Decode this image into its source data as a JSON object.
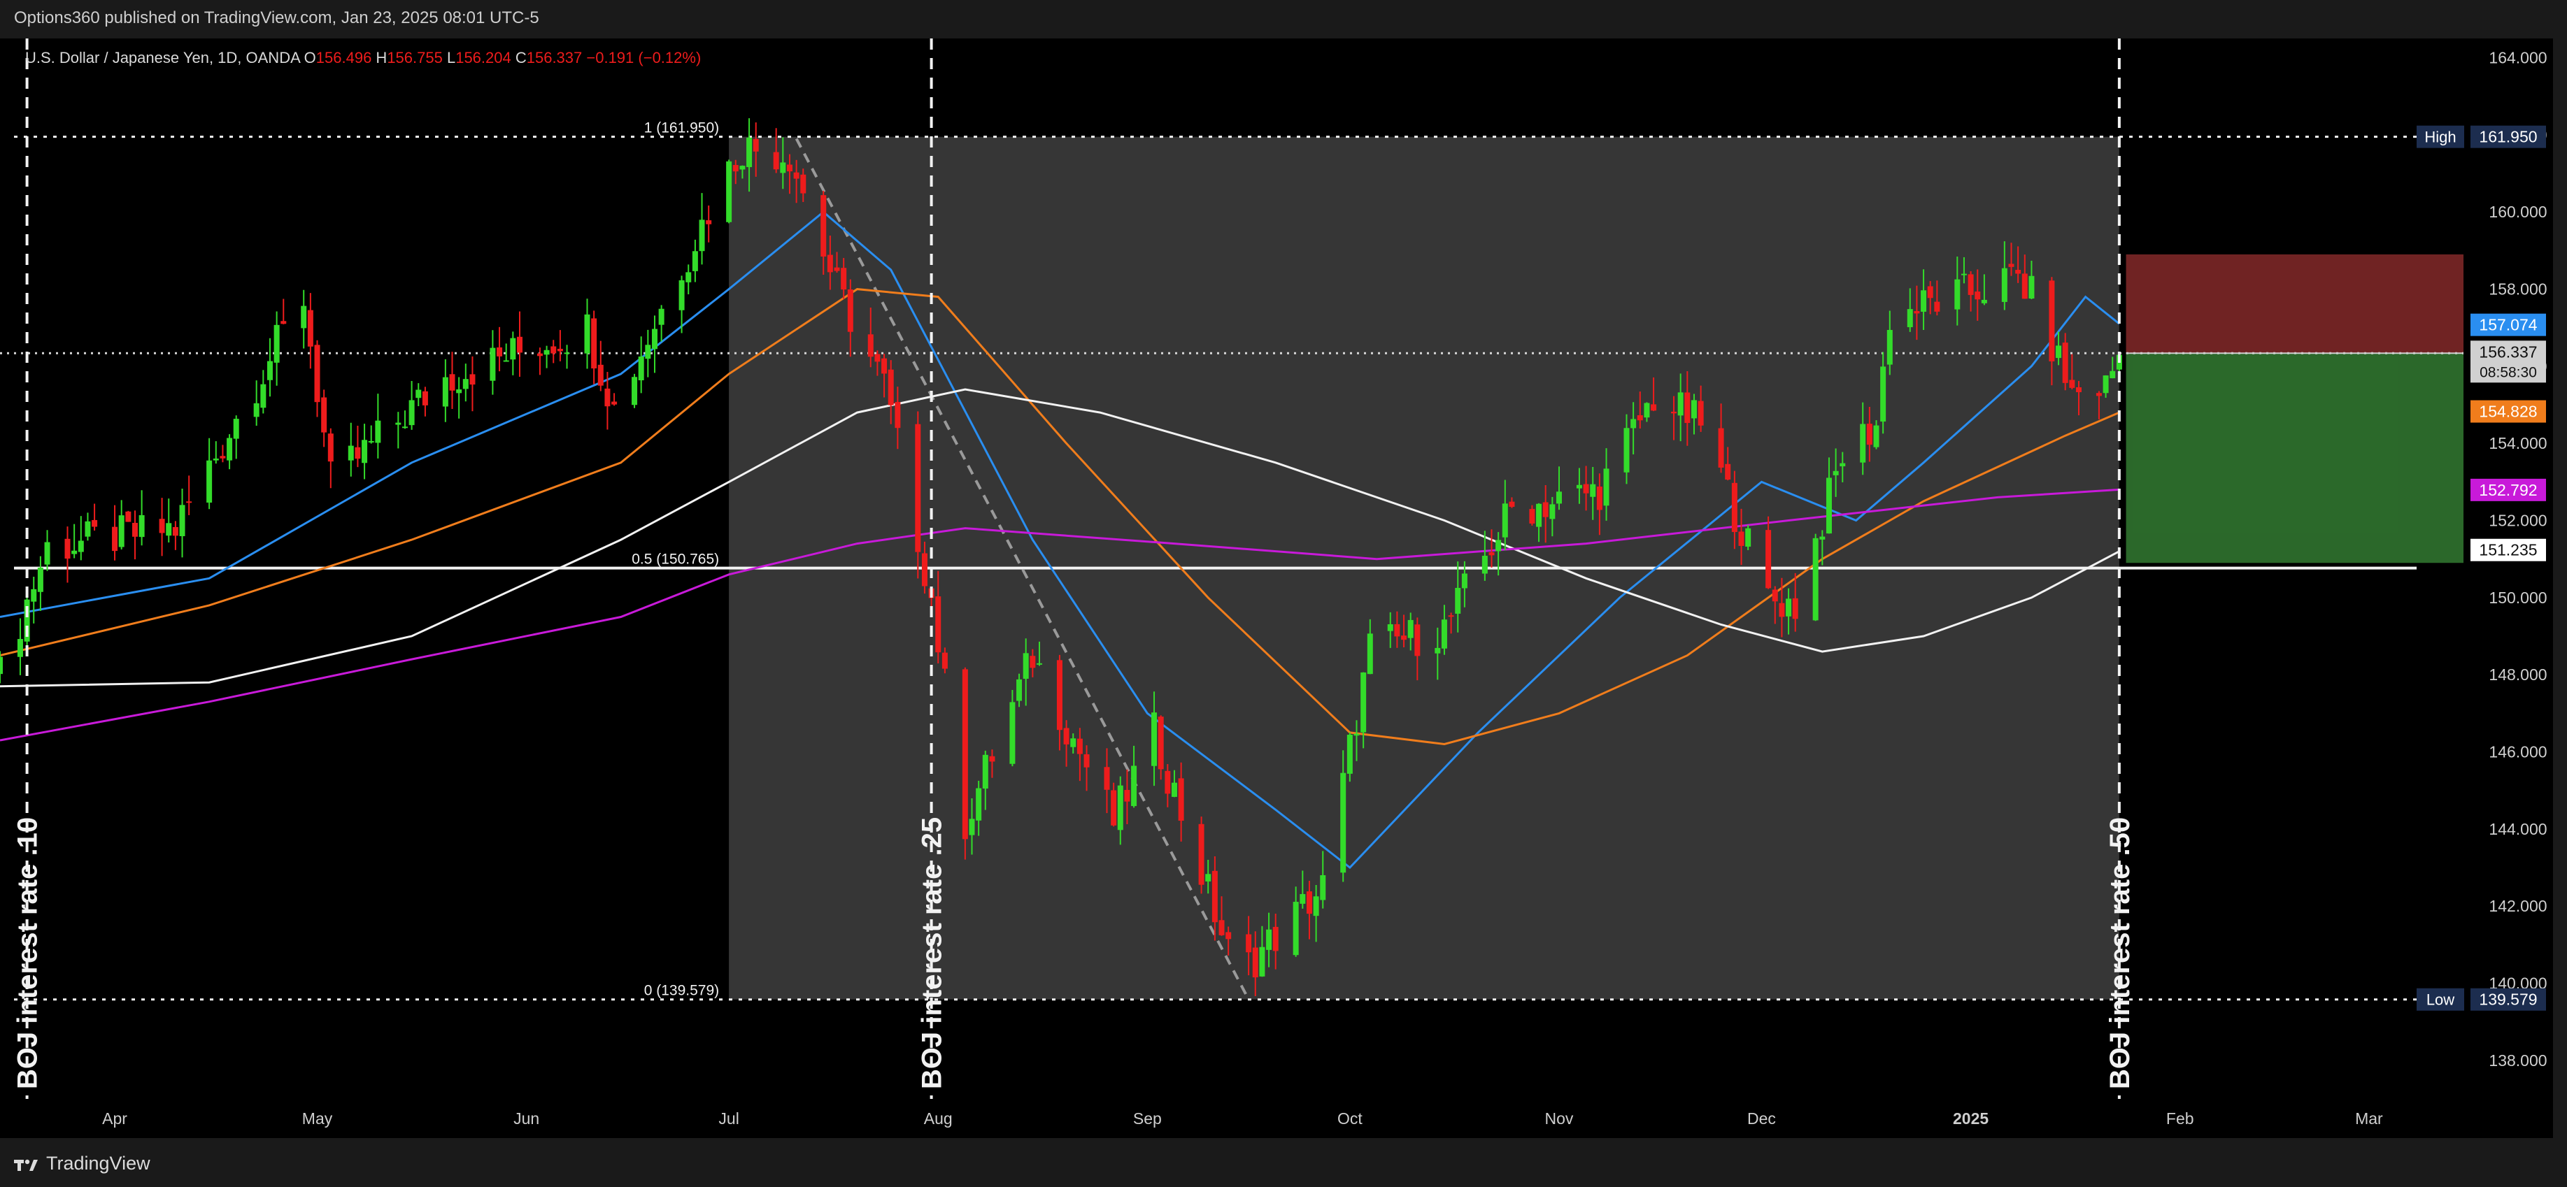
{
  "header": {
    "published": "Options360 published on TradingView.com, Jan 23, 2025 08:01 UTC-5"
  },
  "footer": {
    "brand": "TradingView"
  },
  "colors": {
    "up": "#33dc2a",
    "down": "#ee1c1c",
    "ma_fast": "#2a8ef0",
    "ma_mid": "#f07d1c",
    "ma_slow": "#f2f2f2",
    "ma_long": "#c81ad9",
    "fib_zone": "#363636",
    "stop_zone": "#7a2626",
    "target_zone": "#2d6e2c",
    "axis_label_dark": "#1c2d4f"
  },
  "chart_data": {
    "type": "candlestick",
    "symbol": "U.S. Dollar / Japanese Yen",
    "interval": "1D",
    "source": "OANDA",
    "ohlc": {
      "open": "156.496",
      "high": "156.755",
      "low": "156.204",
      "close": "156.337",
      "change": "−0.191 (−0.12%)"
    },
    "y_axis": {
      "min": 137.0,
      "max": 164.5,
      "ticks": [
        "164.000",
        "162.000",
        "160.000",
        "158.000",
        "156.000",
        "154.000",
        "152.000",
        "150.000",
        "148.000",
        "146.000",
        "144.000",
        "142.000",
        "140.000",
        "138.000"
      ]
    },
    "x_axis": {
      "start": "2024-03-15",
      "end": "2025-03-15",
      "labels": [
        {
          "date": "2024-04-01",
          "text": "Apr",
          "bold": false
        },
        {
          "date": "2024-05-01",
          "text": "May",
          "bold": false
        },
        {
          "date": "2024-06-01",
          "text": "Jun",
          "bold": false
        },
        {
          "date": "2024-07-01",
          "text": "Jul",
          "bold": false
        },
        {
          "date": "2024-08-01",
          "text": "Aug",
          "bold": false
        },
        {
          "date": "2024-09-01",
          "text": "Sep",
          "bold": false
        },
        {
          "date": "2024-10-01",
          "text": "Oct",
          "bold": false
        },
        {
          "date": "2024-11-01",
          "text": "Nov",
          "bold": false
        },
        {
          "date": "2024-12-01",
          "text": "Dec",
          "bold": false
        },
        {
          "date": "2025-01-01",
          "text": "2025",
          "bold": true
        },
        {
          "date": "2025-02-01",
          "text": "Feb",
          "bold": false
        },
        {
          "date": "2025-03-01",
          "text": "Mar",
          "bold": false
        }
      ]
    },
    "price_path": [
      {
        "date": "2024-03-15",
        "close": 148.0
      },
      {
        "date": "2024-03-22",
        "close": 151.3
      },
      {
        "date": "2024-04-10",
        "close": 151.8
      },
      {
        "date": "2024-04-29",
        "close": 157.8
      },
      {
        "date": "2024-05-03",
        "close": 153.0
      },
      {
        "date": "2024-05-20",
        "close": 155.7
      },
      {
        "date": "2024-06-10",
        "close": 157.0
      },
      {
        "date": "2024-06-14",
        "close": 154.9
      },
      {
        "date": "2024-06-30",
        "close": 160.8
      },
      {
        "date": "2024-07-03",
        "close": 161.7
      },
      {
        "date": "2024-07-10",
        "close": 161.5
      },
      {
        "date": "2024-07-17",
        "close": 158.0
      },
      {
        "date": "2024-07-24",
        "close": 155.5
      },
      {
        "date": "2024-07-31",
        "close": 150.0
      },
      {
        "date": "2024-08-05",
        "close": 144.2
      },
      {
        "date": "2024-08-15",
        "close": 148.5
      },
      {
        "date": "2024-08-27",
        "close": 144.2
      },
      {
        "date": "2024-09-02",
        "close": 146.5
      },
      {
        "date": "2024-09-13",
        "close": 140.8
      },
      {
        "date": "2024-09-16",
        "close": 140.5
      },
      {
        "date": "2024-09-27",
        "close": 142.5
      },
      {
        "date": "2024-10-04",
        "close": 148.7
      },
      {
        "date": "2024-10-15",
        "close": 149.2
      },
      {
        "date": "2024-10-25",
        "close": 152.3
      },
      {
        "date": "2024-11-01",
        "close": 152.5
      },
      {
        "date": "2024-11-07",
        "close": 152.8
      },
      {
        "date": "2024-11-15",
        "close": 155.2
      },
      {
        "date": "2024-11-22",
        "close": 154.5
      },
      {
        "date": "2024-12-02",
        "close": 150.0
      },
      {
        "date": "2024-12-06",
        "close": 149.8
      },
      {
        "date": "2024-12-13",
        "close": 153.7
      },
      {
        "date": "2024-12-18",
        "close": 154.5
      },
      {
        "date": "2024-12-20",
        "close": 157.3
      },
      {
        "date": "2025-01-08",
        "close": 158.3
      },
      {
        "date": "2025-01-10",
        "close": 157.8
      },
      {
        "date": "2025-01-16",
        "close": 155.3
      },
      {
        "date": "2025-01-21",
        "close": 155.5
      },
      {
        "date": "2025-01-23",
        "close": 156.3
      }
    ],
    "moving_averages": [
      {
        "color": "#2a8ef0",
        "label": "157.074",
        "points": [
          [
            "2024-03-15",
            149.5
          ],
          [
            "2024-04-15",
            150.5
          ],
          [
            "2024-05-15",
            153.5
          ],
          [
            "2024-06-15",
            155.8
          ],
          [
            "2024-07-01",
            158.0
          ],
          [
            "2024-07-15",
            160.0
          ],
          [
            "2024-07-25",
            158.5
          ],
          [
            "2024-08-15",
            151.5
          ],
          [
            "2024-09-01",
            147.0
          ],
          [
            "2024-09-20",
            144.5
          ],
          [
            "2024-10-01",
            143.0
          ],
          [
            "2024-10-20",
            146.5
          ],
          [
            "2024-11-10",
            150.0
          ],
          [
            "2024-12-01",
            153.0
          ],
          [
            "2024-12-15",
            152.0
          ],
          [
            "2024-12-25",
            153.5
          ],
          [
            "2025-01-10",
            156.0
          ],
          [
            "2025-01-18",
            157.8
          ],
          [
            "2025-01-23",
            157.1
          ]
        ]
      },
      {
        "color": "#f07d1c",
        "label": "154.828",
        "points": [
          [
            "2024-03-15",
            148.5
          ],
          [
            "2024-04-15",
            149.8
          ],
          [
            "2024-05-15",
            151.5
          ],
          [
            "2024-06-15",
            153.5
          ],
          [
            "2024-07-01",
            155.8
          ],
          [
            "2024-07-20",
            158.0
          ],
          [
            "2024-08-01",
            157.8
          ],
          [
            "2024-08-20",
            154.0
          ],
          [
            "2024-09-10",
            150.0
          ],
          [
            "2024-10-01",
            146.5
          ],
          [
            "2024-10-15",
            146.2
          ],
          [
            "2024-11-01",
            147.0
          ],
          [
            "2024-11-20",
            148.5
          ],
          [
            "2024-12-10",
            151.0
          ],
          [
            "2024-12-25",
            152.5
          ],
          [
            "2025-01-15",
            154.2
          ],
          [
            "2025-01-23",
            154.8
          ]
        ]
      },
      {
        "color": "#f2f2f2",
        "label": "151.235",
        "points": [
          [
            "2024-03-15",
            147.7
          ],
          [
            "2024-04-15",
            147.8
          ],
          [
            "2024-05-15",
            149.0
          ],
          [
            "2024-06-15",
            151.5
          ],
          [
            "2024-07-01",
            153.0
          ],
          [
            "2024-07-20",
            154.8
          ],
          [
            "2024-08-05",
            155.4
          ],
          [
            "2024-08-25",
            154.8
          ],
          [
            "2024-09-20",
            153.5
          ],
          [
            "2024-10-15",
            152.0
          ],
          [
            "2024-11-05",
            150.5
          ],
          [
            "2024-11-25",
            149.3
          ],
          [
            "2024-12-10",
            148.6
          ],
          [
            "2024-12-25",
            149.0
          ],
          [
            "2025-01-10",
            150.0
          ],
          [
            "2025-01-23",
            151.2
          ]
        ]
      },
      {
        "color": "#c81ad9",
        "label": "152.792",
        "points": [
          [
            "2024-03-15",
            146.3
          ],
          [
            "2024-04-15",
            147.3
          ],
          [
            "2024-05-15",
            148.4
          ],
          [
            "2024-06-15",
            149.5
          ],
          [
            "2024-07-01",
            150.6
          ],
          [
            "2024-07-20",
            151.4
          ],
          [
            "2024-08-05",
            151.8
          ],
          [
            "2024-09-05",
            151.4
          ],
          [
            "2024-10-05",
            151.0
          ],
          [
            "2024-11-05",
            151.4
          ],
          [
            "2024-12-05",
            152.0
          ],
          [
            "2025-01-05",
            152.6
          ],
          [
            "2025-01-23",
            152.8
          ]
        ]
      }
    ],
    "fibonacci": {
      "start": "2024-07-01",
      "end": "2025-01-23",
      "levels": [
        {
          "ratio": "1",
          "price": 161.95,
          "label": "1 (161.950)"
        },
        {
          "ratio": "0.5",
          "price": 150.765,
          "label": "0.5 (150.765)"
        },
        {
          "ratio": "0",
          "price": 139.579,
          "label": "0 (139.579)"
        }
      ],
      "decline_line": {
        "from": [
          "2024-07-11",
          161.9
        ],
        "to": [
          "2024-09-16",
          139.58
        ]
      }
    },
    "high_low_markers": [
      {
        "label": "High",
        "price": 161.95,
        "value": "161.950"
      },
      {
        "label": "Low",
        "price": 139.579,
        "value": "139.579"
      }
    ],
    "current_price": {
      "price": 156.337,
      "value": "156.337",
      "countdown": "08:58:30"
    },
    "position_tool": {
      "start": "2025-01-24",
      "end": "2025-03-15",
      "entry": 156.337,
      "stop": 158.9,
      "target": 150.9
    },
    "events": [
      {
        "date": "2024-03-19",
        "label": "BOJ interest rate .10"
      },
      {
        "date": "2024-07-31",
        "label": "BOJ interest rate .25"
      },
      {
        "date": "2025-01-23",
        "label": "BOJ interest rate .50"
      }
    ]
  }
}
